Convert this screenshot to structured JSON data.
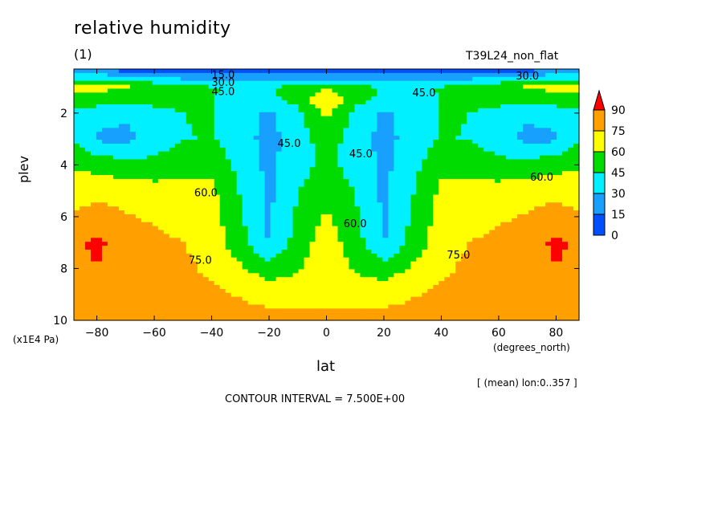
{
  "header": {
    "title": "relative humidity",
    "subtitle": "(1)",
    "run_name": "T39L24_non_flat"
  },
  "footer": {
    "mean_note": "[ (mean) lon:0..357 ]",
    "contour_interval": "CONTOUR INTERVAL = 7.500E+00"
  },
  "chart_data": {
    "type": "heatmap",
    "title": "relative humidity",
    "xlabel": "lat",
    "x_unit": "(degrees_north)",
    "ylabel": "plev",
    "y_unit": "(x1E4 Pa)",
    "xlim": [
      -88,
      88
    ],
    "ylim": [
      10,
      0.3
    ],
    "x_ticks": [
      -80,
      -60,
      -40,
      -20,
      0,
      20,
      40,
      60,
      80
    ],
    "y_ticks": [
      2,
      4,
      6,
      8,
      10
    ],
    "levels": [
      0,
      15,
      30,
      45,
      60,
      75,
      90
    ],
    "level_colors": [
      "#0050ff",
      "#18a0ff",
      "#00f0ff",
      "#00dc00",
      "#ffff00",
      "#ffa000",
      "#ff0000"
    ],
    "colorbar_labels": [
      "0",
      "15",
      "30",
      "45",
      "60",
      "75",
      "90"
    ],
    "contour_labels": [
      {
        "text": "15.0",
        "lat": -36,
        "plev": 0.55
      },
      {
        "text": "30.0",
        "lat": -36,
        "plev": 0.85
      },
      {
        "text": "45.0",
        "lat": -36,
        "plev": 1.2
      },
      {
        "text": "45.0",
        "lat": 34,
        "plev": 1.25
      },
      {
        "text": "30.0",
        "lat": 70,
        "plev": 0.6
      },
      {
        "text": "45.0",
        "lat": -13,
        "plev": 3.2
      },
      {
        "text": "45.0",
        "lat": 12,
        "plev": 3.6
      },
      {
        "text": "60.0",
        "lat": -42,
        "plev": 5.1
      },
      {
        "text": "60.0",
        "lat": 10,
        "plev": 6.3
      },
      {
        "text": "60.0",
        "lat": 75,
        "plev": 4.5
      },
      {
        "text": "75.0",
        "lat": -44,
        "plev": 7.7
      },
      {
        "text": "75.0",
        "lat": 46,
        "plev": 7.5
      }
    ],
    "lat": [
      -88,
      -80,
      -70,
      -60,
      -50,
      -40,
      -30,
      -20,
      -10,
      0,
      10,
      20,
      30,
      40,
      50,
      60,
      70,
      80,
      88
    ],
    "plev": [
      0.3,
      0.6,
      1.0,
      1.5,
      2.0,
      3.0,
      4.0,
      5.0,
      6.0,
      7.0,
      8.0,
      9.0,
      10.0
    ],
    "values": [
      [
        8,
        8,
        8,
        8,
        8,
        8,
        8,
        8,
        8,
        8,
        8,
        8,
        8,
        8,
        8,
        8,
        8,
        8,
        8
      ],
      [
        40,
        38,
        35,
        30,
        25,
        22,
        20,
        20,
        20,
        22,
        20,
        20,
        20,
        22,
        25,
        30,
        35,
        38,
        40
      ],
      [
        62,
        64,
        62,
        55,
        50,
        46,
        44,
        45,
        48,
        56,
        48,
        45,
        44,
        46,
        50,
        55,
        62,
        64,
        62
      ],
      [
        58,
        52,
        50,
        50,
        48,
        46,
        36,
        42,
        50,
        78,
        50,
        42,
        36,
        46,
        48,
        50,
        50,
        52,
        58
      ],
      [
        42,
        36,
        33,
        40,
        45,
        47,
        36,
        28,
        40,
        64,
        40,
        28,
        36,
        47,
        45,
        40,
        33,
        36,
        42
      ],
      [
        44,
        28,
        25,
        37,
        44,
        46,
        36,
        25,
        38,
        52,
        38,
        25,
        36,
        46,
        44,
        37,
        25,
        28,
        44
      ],
      [
        58,
        55,
        50,
        50,
        54,
        56,
        40,
        26,
        40,
        48,
        40,
        26,
        40,
        56,
        54,
        50,
        50,
        55,
        58
      ],
      [
        66,
        70,
        68,
        66,
        65,
        63,
        44,
        27,
        44,
        56,
        44,
        27,
        44,
        63,
        65,
        66,
        68,
        70,
        66
      ],
      [
        78,
        82,
        76,
        73,
        70,
        66,
        47,
        28,
        48,
        62,
        48,
        28,
        47,
        66,
        70,
        73,
        76,
        82,
        78
      ],
      [
        88,
        92,
        86,
        78,
        75,
        70,
        50,
        29,
        52,
        68,
        52,
        29,
        50,
        70,
        75,
        78,
        86,
        92,
        88
      ],
      [
        86,
        90,
        80,
        80,
        78,
        72,
        62,
        52,
        58,
        70,
        58,
        52,
        62,
        72,
        78,
        80,
        80,
        90,
        86
      ],
      [
        82,
        80,
        78,
        88,
        80,
        78,
        74,
        70,
        70,
        70,
        70,
        70,
        74,
        78,
        80,
        88,
        78,
        80,
        82
      ],
      [
        80,
        80,
        80,
        80,
        80,
        80,
        80,
        80,
        80,
        80,
        80,
        80,
        80,
        80,
        80,
        80,
        80,
        80,
        80
      ]
    ]
  }
}
